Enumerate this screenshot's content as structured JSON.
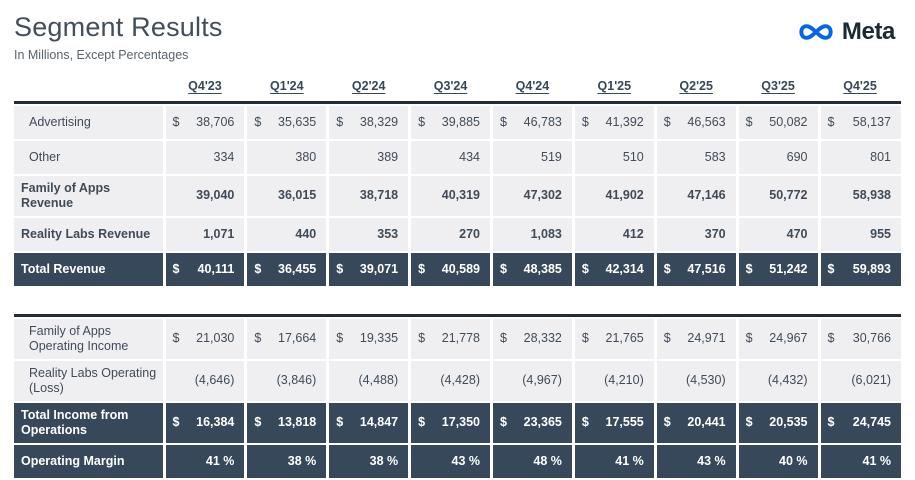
{
  "header": {
    "title": "Segment Results",
    "subtitle": "In Millions, Except Percentages",
    "brand": "Meta"
  },
  "colors": {
    "dark_row_bg": "#36485a",
    "light_row_bg": "#efeff1",
    "brand_blue": "#0668E1",
    "brand_text": "#1c2b33",
    "section_border": "#222d38"
  },
  "table": {
    "quarters": [
      "Q4'23",
      "Q1'24",
      "Q2'24",
      "Q3'24",
      "Q4'24",
      "Q1'25",
      "Q2'25",
      "Q3'25",
      "Q4'25"
    ],
    "sections": [
      {
        "name": "revenue",
        "rows": [
          {
            "label": "Advertising",
            "dollar": true,
            "bold": false,
            "indent": true,
            "variant": "light",
            "tall": false,
            "values": [
              "38,706",
              "35,635",
              "38,329",
              "39,885",
              "46,783",
              "41,392",
              "46,563",
              "50,082",
              "58,137"
            ]
          },
          {
            "label": "Other",
            "dollar": false,
            "bold": false,
            "indent": true,
            "variant": "light",
            "tall": false,
            "values": [
              "334",
              "380",
              "389",
              "434",
              "519",
              "510",
              "583",
              "690",
              "801"
            ]
          },
          {
            "label": "Family of Apps Revenue",
            "dollar": false,
            "bold": true,
            "indent": false,
            "variant": "light",
            "tall": true,
            "values": [
              "39,040",
              "36,015",
              "38,718",
              "40,319",
              "47,302",
              "41,902",
              "47,146",
              "50,772",
              "58,938"
            ]
          },
          {
            "label": "Reality Labs Revenue",
            "dollar": false,
            "bold": true,
            "indent": false,
            "variant": "light",
            "tall": false,
            "values": [
              "1,071",
              "440",
              "353",
              "270",
              "1,083",
              "412",
              "370",
              "470",
              "955"
            ]
          },
          {
            "label": "Total Revenue",
            "dollar": true,
            "bold": true,
            "indent": false,
            "variant": "dark",
            "tall": false,
            "values": [
              "40,111",
              "36,455",
              "39,071",
              "40,589",
              "48,385",
              "42,314",
              "47,516",
              "51,242",
              "59,893"
            ]
          }
        ]
      },
      {
        "name": "operating-income",
        "rows": [
          {
            "label": "Family of Apps Operating Income",
            "dollar": true,
            "bold": false,
            "indent": true,
            "variant": "light",
            "tall": true,
            "values": [
              "21,030",
              "17,664",
              "19,335",
              "21,778",
              "28,332",
              "21,765",
              "24,971",
              "24,967",
              "30,766"
            ]
          },
          {
            "label": "Reality Labs Operating (Loss)",
            "dollar": false,
            "bold": false,
            "indent": true,
            "variant": "light",
            "tall": true,
            "values": [
              "(4,646)",
              "(3,846)",
              "(4,488)",
              "(4,428)",
              "(4,967)",
              "(4,210)",
              "(4,530)",
              "(4,432)",
              "(6,021)"
            ]
          },
          {
            "label": "Total Income from Operations",
            "dollar": true,
            "bold": true,
            "indent": false,
            "variant": "dark",
            "tall": true,
            "values": [
              "16,384",
              "13,818",
              "14,847",
              "17,350",
              "23,365",
              "17,555",
              "20,441",
              "20,535",
              "24,745"
            ]
          },
          {
            "label": "Operating Margin",
            "dollar": false,
            "bold": true,
            "indent": false,
            "variant": "dark",
            "tall": false,
            "values": [
              "41 %",
              "38 %",
              "38 %",
              "43 %",
              "48 %",
              "41 %",
              "43 %",
              "40 %",
              "41 %"
            ]
          }
        ]
      }
    ]
  }
}
